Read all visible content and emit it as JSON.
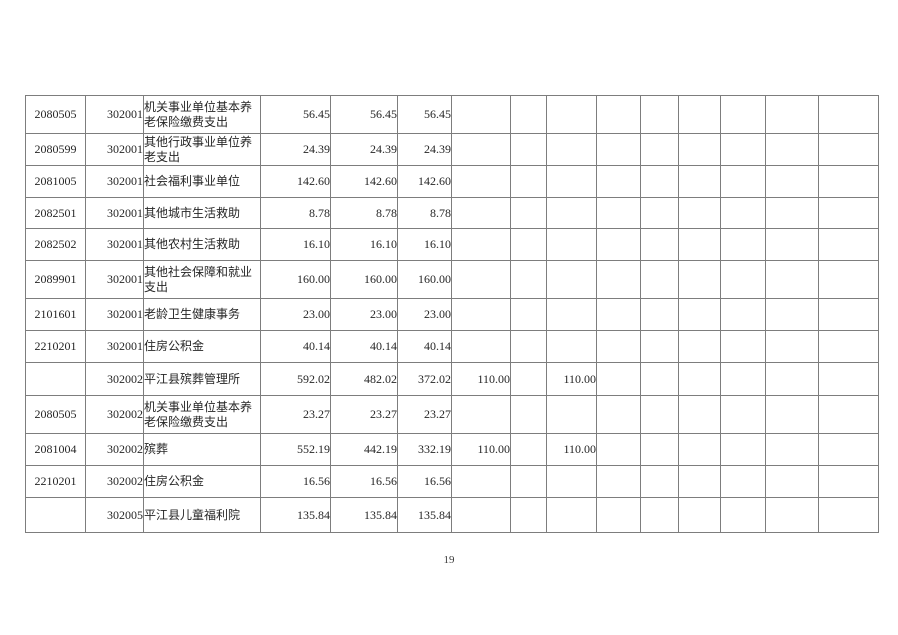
{
  "page": {
    "number": "19"
  },
  "table": {
    "rows": [
      {
        "code1": "2080505",
        "code2": "302001",
        "name": "机关事业单位基本养老保险缴费支出",
        "values": [
          "56.45",
          "56.45",
          "56.45",
          "",
          "",
          "",
          "",
          "",
          "",
          "",
          "",
          ""
        ]
      },
      {
        "code1": "2080599",
        "code2": "302001",
        "name": "其他行政事业单位养老支出",
        "values": [
          "24.39",
          "24.39",
          "24.39",
          "",
          "",
          "",
          "",
          "",
          "",
          "",
          "",
          ""
        ]
      },
      {
        "code1": "2081005",
        "code2": "302001",
        "name": "社会福利事业单位",
        "values": [
          "142.60",
          "142.60",
          "142.60",
          "",
          "",
          "",
          "",
          "",
          "",
          "",
          "",
          ""
        ]
      },
      {
        "code1": "2082501",
        "code2": "302001",
        "name": "其他城市生活救助",
        "values": [
          "8.78",
          "8.78",
          "8.78",
          "",
          "",
          "",
          "",
          "",
          "",
          "",
          "",
          ""
        ]
      },
      {
        "code1": "2082502",
        "code2": "302001",
        "name": "其他农村生活救助",
        "values": [
          "16.10",
          "16.10",
          "16.10",
          "",
          "",
          "",
          "",
          "",
          "",
          "",
          "",
          ""
        ]
      },
      {
        "code1": "2089901",
        "code2": "302001",
        "name": "其他社会保障和就业支出",
        "values": [
          "160.00",
          "160.00",
          "160.00",
          "",
          "",
          "",
          "",
          "",
          "",
          "",
          "",
          ""
        ]
      },
      {
        "code1": "2101601",
        "code2": "302001",
        "name": "老龄卫生健康事务",
        "values": [
          "23.00",
          "23.00",
          "23.00",
          "",
          "",
          "",
          "",
          "",
          "",
          "",
          "",
          ""
        ]
      },
      {
        "code1": "2210201",
        "code2": "302001",
        "name": "住房公积金",
        "values": [
          "40.14",
          "40.14",
          "40.14",
          "",
          "",
          "",
          "",
          "",
          "",
          "",
          "",
          ""
        ]
      },
      {
        "code1": "",
        "code2": "302002",
        "name": "平江县殡葬管理所",
        "values": [
          "592.02",
          "482.02",
          "372.02",
          "110.00",
          "",
          "110.00",
          "",
          "",
          "",
          "",
          "",
          ""
        ]
      },
      {
        "code1": "2080505",
        "code2": "302002",
        "name": "机关事业单位基本养老保险缴费支出",
        "values": [
          "23.27",
          "23.27",
          "23.27",
          "",
          "",
          "",
          "",
          "",
          "",
          "",
          "",
          ""
        ]
      },
      {
        "code1": "2081004",
        "code2": "302002",
        "name": "殡葬",
        "values": [
          "552.19",
          "442.19",
          "332.19",
          "110.00",
          "",
          "110.00",
          "",
          "",
          "",
          "",
          "",
          ""
        ]
      },
      {
        "code1": "2210201",
        "code2": "302002",
        "name": "住房公积金",
        "values": [
          "16.56",
          "16.56",
          "16.56",
          "",
          "",
          "",
          "",
          "",
          "",
          "",
          "",
          ""
        ]
      },
      {
        "code1": "",
        "code2": "302005",
        "name": "平江县儿童福利院",
        "values": [
          "135.84",
          "135.84",
          "135.84",
          "",
          "",
          "",
          "",
          "",
          "",
          "",
          "",
          ""
        ]
      }
    ]
  }
}
